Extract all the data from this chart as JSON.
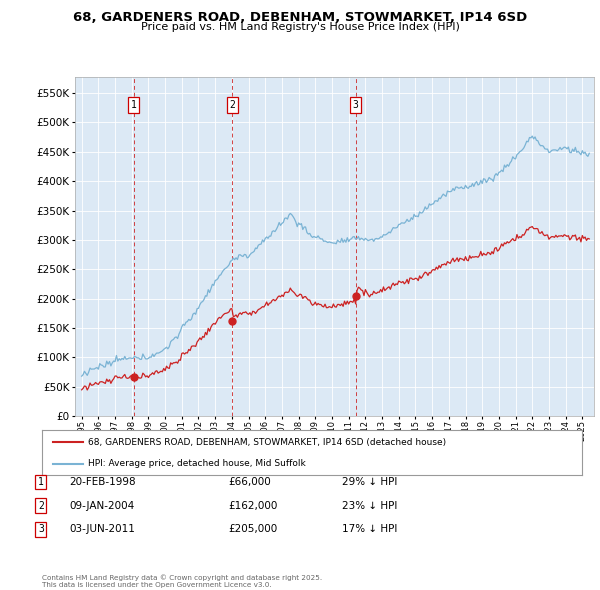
{
  "title_line1": "68, GARDENERS ROAD, DEBENHAM, STOWMARKET, IP14 6SD",
  "title_line2": "Price paid vs. HM Land Registry's House Price Index (HPI)",
  "hpi_color": "#7ab3d4",
  "price_color": "#cc2222",
  "dashed_line_color": "#cc2222",
  "plot_bg_color": "#dce9f5",
  "legend_line1": "68, GARDENERS ROAD, DEBENHAM, STOWMARKET, IP14 6SD (detached house)",
  "legend_line2": "HPI: Average price, detached house, Mid Suffolk",
  "table_entries": [
    {
      "num": "1",
      "date": "20-FEB-1998",
      "price": "£66,000",
      "pct": "29% ↓ HPI"
    },
    {
      "num": "2",
      "date": "09-JAN-2004",
      "price": "£162,000",
      "pct": "23% ↓ HPI"
    },
    {
      "num": "3",
      "date": "03-JUN-2011",
      "price": "£205,000",
      "pct": "17% ↓ HPI"
    }
  ],
  "footer": "Contains HM Land Registry data © Crown copyright and database right 2025.\nThis data is licensed under the Open Government Licence v3.0.",
  "ylim_min": 0,
  "ylim_max": 578000,
  "xlim_min": 1994.6,
  "xlim_max": 2025.7,
  "sale_year_floats": [
    1998.12,
    2004.03,
    2011.42
  ],
  "sale_prices": [
    66000,
    162000,
    205000
  ],
  "sale_labels": [
    "1",
    "2",
    "3"
  ]
}
